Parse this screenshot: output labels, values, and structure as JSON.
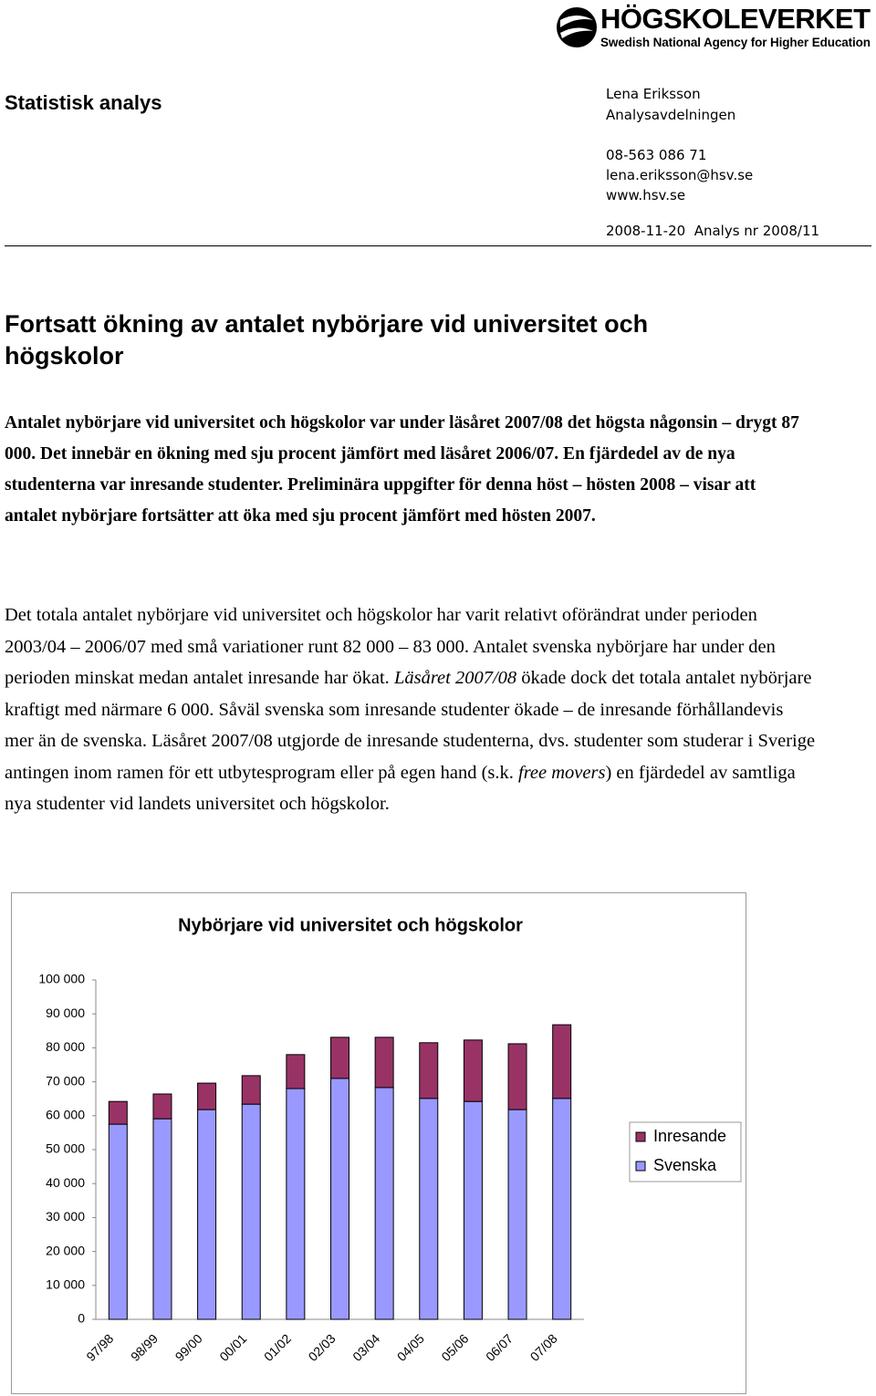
{
  "logo": {
    "name": "HÖGSKOLEVERKET",
    "tagline": "Swedish National Agency for Higher Education"
  },
  "header": {
    "series_title": "Statistisk analys",
    "author": "Lena Eriksson",
    "department": "Analysavdelningen",
    "phone": "08-563 086 71",
    "email": "lena.eriksson@hsv.se",
    "web": "www.hsv.se",
    "date_and_number": "2008-11-20  Analys nr 2008/11"
  },
  "body": {
    "heading": "Fortsatt ökning av antalet nybörjare vid universitet och högskolor",
    "lead": "Antalet nybörjare vid universitet och högskolor var under läsåret 2007/08 det högsta någonsin – drygt 87 000. Det innebär en ökning med sju procent jämfört med läsåret 2006/07. En fjärdedel av de nya studenterna var inresande studenter. Preliminära uppgifter för denna höst – hösten 2008 – visar att antalet nybörjare fortsätter att öka med sju procent jämfört med hösten 2007.",
    "paragraph": [
      "Det totala antalet nybörjare vid universitet och högskolor har varit relativt oförändrat under perioden 2003/04 – 2006/07 med små variationer runt 82 000 – 83 000. Antalet svenska nybörjare har under den perioden minskat medan antalet inresande har ökat. ",
      "Läsåret 2007/08",
      " ökade dock det totala antalet nybörjare kraftigt med närmare 6 000. Såväl svenska som inresande studenter ökade – de inresande förhållandevis mer än de svenska. Läsåret 2007/08 utgjorde de inresande studenterna, dvs. studenter som studerar i Sverige antingen inom ramen för ett utbytesprogram eller på egen hand (s.k. ",
      "free movers",
      ") en fjärdedel av samtliga nya studenter vid landets universitet och högskolor."
    ]
  },
  "chart_data": {
    "type": "bar",
    "stacked": true,
    "title": "Nybörjare vid universitet och högskolor",
    "categories": [
      "97/98",
      "98/99",
      "99/00",
      "00/01",
      "01/02",
      "02/03",
      "03/04",
      "04/05",
      "05/06",
      "06/07",
      "07/08"
    ],
    "series": [
      {
        "name": "Svenska",
        "color": "#9999ff",
        "values": [
          57500,
          59100,
          61800,
          63400,
          68000,
          71000,
          68300,
          65100,
          64200,
          61800,
          65100
        ]
      },
      {
        "name": "Inresande",
        "color": "#993366",
        "values": [
          6700,
          7300,
          7800,
          8400,
          10000,
          12100,
          14800,
          16400,
          18100,
          19400,
          21700
        ]
      }
    ],
    "ylim": [
      0,
      100000
    ],
    "yticks": [
      0,
      {
        "value": 10000,
        "label": "10 000"
      },
      {
        "value": 20000,
        "label": "20 000"
      },
      {
        "value": 30000,
        "label": "30 000"
      },
      {
        "value": 40000,
        "label": "40 000"
      },
      {
        "value": 50000,
        "label": "50 000"
      },
      {
        "value": 60000,
        "label": "60 000"
      },
      {
        "value": 70000,
        "label": "70 000"
      },
      {
        "value": 80000,
        "label": "80 000"
      },
      {
        "value": 90000,
        "label": "90 000"
      },
      {
        "value": 100000,
        "label": "100 000"
      }
    ],
    "grid": false,
    "legend": "right"
  }
}
